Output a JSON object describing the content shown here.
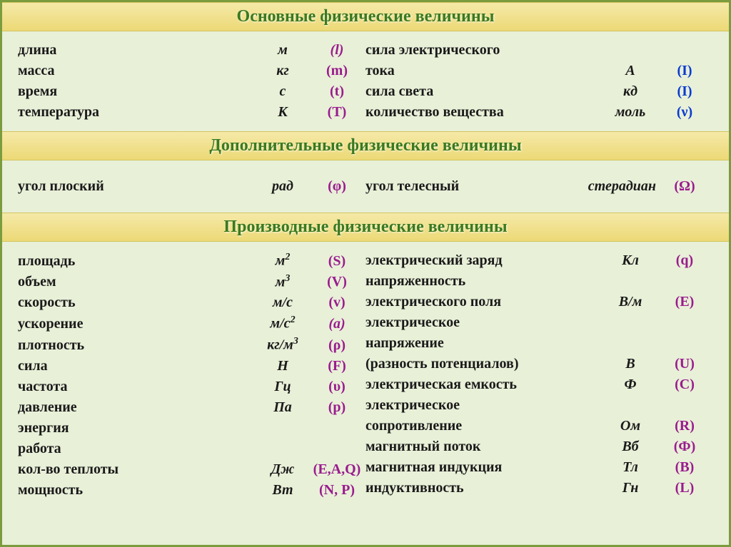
{
  "colors": {
    "background": "#e8f0d8",
    "border": "#7a9c3e",
    "header_bg_top": "#f5e9a8",
    "header_bg_bottom": "#ecd976",
    "header_text": "#3a7a1e",
    "text": "#1a1a1a",
    "symbol_purple": "#9a1b8e",
    "symbol_blue": "#0a3bd1"
  },
  "typography": {
    "header_fontsize": 24,
    "row_fontsize": 20,
    "font_family": "Times New Roman"
  },
  "sections": {
    "basic": {
      "title": "Основные физические величины",
      "left": [
        {
          "name": "длина",
          "unit": "м",
          "sym": "(l)",
          "sym_italic": true
        },
        {
          "name": "масса",
          "unit": "кг",
          "sym": "(m)"
        },
        {
          "name": "время",
          "unit": "с",
          "sym": "(t)"
        },
        {
          "name": "температура",
          "unit": "К",
          "sym": "(T)"
        }
      ],
      "right": [
        {
          "name": "сила электрического",
          "unit": "",
          "sym": ""
        },
        {
          "name": "тока",
          "unit": "А",
          "sym": "(I)",
          "sym_blue": true
        },
        {
          "name": "сила света",
          "unit": "кд",
          "sym": "(I)",
          "sym_blue": true
        },
        {
          "name": "количество вещества",
          "unit": "моль",
          "sym": "(ν)",
          "sym_blue": true
        }
      ]
    },
    "additional": {
      "title": "Дополнительные  физические величины",
      "left": [
        {
          "name": "угол плоский",
          "unit": "рад",
          "sym": "(φ)"
        }
      ],
      "right": [
        {
          "name": "угол телесный",
          "unit": "стерадиан",
          "sym": "(Ω)"
        }
      ]
    },
    "derived": {
      "title": "Производные  физические величины",
      "left": [
        {
          "name": "площадь",
          "unit_html": "м<sup>2</sup>",
          "sym": "(S)"
        },
        {
          "name": "объем",
          "unit_html": "м<sup>3</sup>",
          "sym": "(V)"
        },
        {
          "name": "скорость",
          "unit": "м/с",
          "sym": "(v)"
        },
        {
          "name": "ускорение",
          "unit_html": "м/с<sup>2</sup>",
          "sym": "(a)",
          "sym_italic": true
        },
        {
          "name": "плотность",
          "unit_html": "кг/м<sup>3</sup>",
          "sym": "(ρ)"
        },
        {
          "name": "сила",
          "unit": "Н",
          "sym": "(F)"
        },
        {
          "name": "частота",
          "unit": "Гц",
          "sym": "(υ)"
        },
        {
          "name": "давление",
          "unit": "Па",
          "sym": "(p)"
        },
        {
          "name": "энергия",
          "unit": "",
          "sym": ""
        },
        {
          "name": "работа",
          "unit": "",
          "sym": ""
        },
        {
          "name": "кол-во теплоты",
          "unit": "Дж",
          "sym": "(E,A,Q)"
        },
        {
          "name": "мощность",
          "unit": "Вт",
          "sym": "(N, P)"
        }
      ],
      "right": [
        {
          "name": "электрический заряд",
          "unit": "Кл",
          "sym": "(q)"
        },
        {
          "name": "напряженность",
          "unit": "",
          "sym": ""
        },
        {
          "name": "электрического поля",
          "unit": "В/м",
          "sym": "(E)"
        },
        {
          "name": "электрическое",
          "unit": "",
          "sym": ""
        },
        {
          "name": "напряжение",
          "unit": "",
          "sym": ""
        },
        {
          "name": "(разность потенциалов)",
          "unit": "В",
          "sym": "(U)"
        },
        {
          "name": "электрическая емкость",
          "unit": "Ф",
          "sym": "(C)"
        },
        {
          "name": "электрическое",
          "unit": "",
          "sym": ""
        },
        {
          "name": "сопротивление",
          "unit": "Ом",
          "sym": "(R)"
        },
        {
          "name": "магнитный поток",
          "unit": "Вб",
          "sym": "(Ф)"
        },
        {
          "name": "магнитная индукция",
          "unit": "Тл",
          "sym": "(B)"
        },
        {
          "name": "индуктивность",
          "unit": "Гн",
          "sym": "(L)"
        }
      ]
    }
  }
}
